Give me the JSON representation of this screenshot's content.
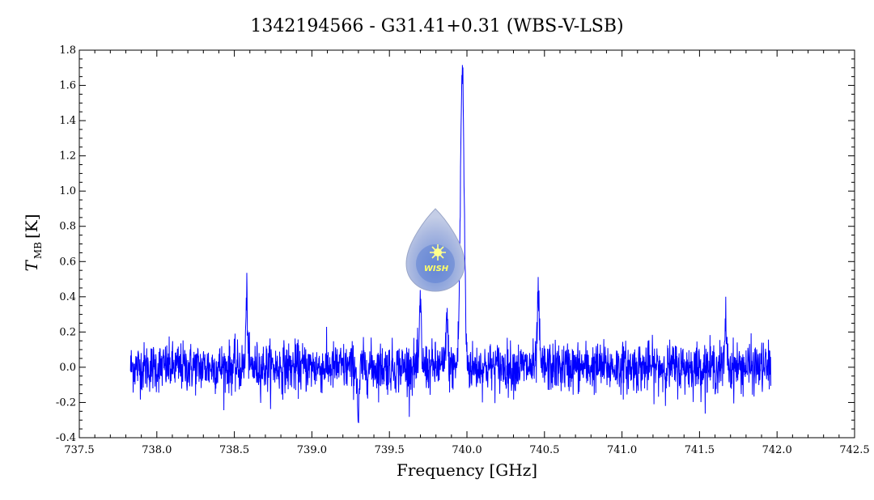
{
  "chart_data": {
    "type": "line",
    "title": "1342194566 - G31.41+0.31 (WBS-V-LSB)",
    "xlabel": "Frequency [GHz]",
    "ylabel_main": "T",
    "ylabel_sub": "MB",
    "ylabel_unit": "[K]",
    "xlim": [
      737.5,
      742.5
    ],
    "ylim": [
      -0.4,
      1.8
    ],
    "x_ticks": [
      "737.5",
      "738.0",
      "738.5",
      "739.0",
      "739.5",
      "740.0",
      "740.5",
      "741.0",
      "741.5",
      "742.0",
      "742.5"
    ],
    "y_ticks": [
      "-0.4",
      "-0.2",
      "0.0",
      "0.2",
      "0.4",
      "0.6",
      "0.8",
      "1.0",
      "1.2",
      "1.4",
      "1.6",
      "1.8"
    ],
    "grid": false,
    "color": "#0000ff",
    "x_range": [
      737.83,
      741.96
    ],
    "features": [
      {
        "x": 739.97,
        "y": 1.68
      },
      {
        "x": 739.87,
        "y": 0.3
      },
      {
        "x": 740.46,
        "y": 0.42
      },
      {
        "x": 738.58,
        "y": 0.39
      },
      {
        "x": 739.7,
        "y": 0.35
      },
      {
        "x": 741.67,
        "y": 0.27
      },
      {
        "x": 739.3,
        "y": -0.3
      }
    ],
    "noise_rms": 0.07
  },
  "logo": {
    "text": "WISH",
    "icon": "star-drop-icon"
  }
}
